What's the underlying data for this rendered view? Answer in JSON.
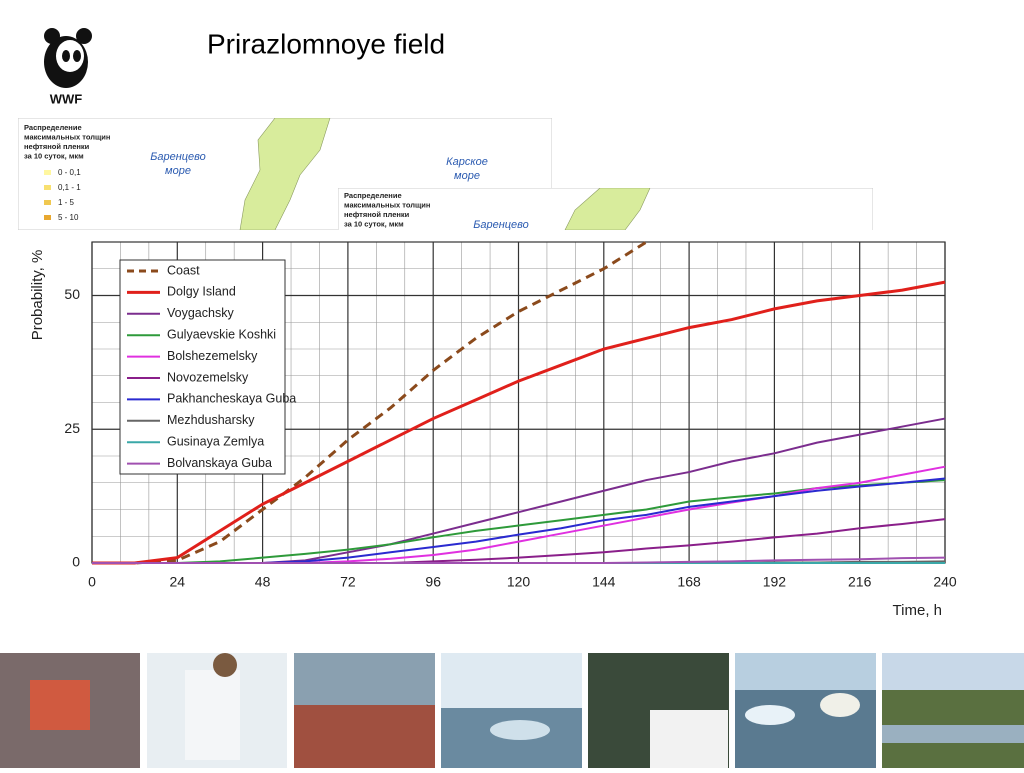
{
  "title": "Prirazlomnoye field",
  "logo_text": "WWF",
  "maps": [
    {
      "title": [
        "Распределение",
        "максимальных толщин",
        "нефтяной пленки",
        "за 10 суток, мкм"
      ],
      "seas": [
        [
          "Баренцево",
          "море"
        ],
        [
          "Карское",
          "море"
        ]
      ],
      "legend": [
        "0 - 0,1",
        "0,1 - 1",
        "1 - 5",
        "5 - 10"
      ]
    },
    {
      "title": [
        "Распределение",
        "максимальных толщин",
        "нефтяной пленки",
        "за 10 суток, мкм"
      ],
      "seas": [
        [
          "Баренцево"
        ]
      ]
    }
  ],
  "chart_data": {
    "type": "line",
    "xlabel": "Time, h",
    "ylabel": "Probability, %",
    "xlim": [
      0,
      240
    ],
    "ylim": [
      0,
      60
    ],
    "xticks": [
      0,
      24,
      48,
      72,
      96,
      120,
      144,
      168,
      192,
      216,
      240
    ],
    "yticks": [
      0,
      25,
      50
    ],
    "grid": true,
    "x_minor_grid": [
      8,
      16,
      32,
      40,
      56,
      64,
      80,
      88,
      104,
      112,
      128,
      136,
      152,
      160,
      176,
      184,
      200,
      208,
      224,
      232
    ],
    "y_minor_grid": [
      5,
      10,
      15,
      20,
      30,
      35,
      40,
      45,
      55
    ],
    "legend": "upper left",
    "x": [
      0,
      12,
      24,
      36,
      48,
      60,
      72,
      84,
      96,
      108,
      120,
      132,
      144,
      156,
      168,
      180,
      192,
      204,
      216,
      228,
      240
    ],
    "series": [
      {
        "name": "Coast",
        "color": "#8b4a1c",
        "dash": true,
        "values": [
          0,
          0,
          0.5,
          4,
          10,
          16,
          23,
          29,
          36,
          42,
          47,
          51,
          55,
          60,
          null,
          null,
          null,
          null,
          null,
          null,
          null
        ]
      },
      {
        "name": "Dolgy Island",
        "color": "#e0201b",
        "values": [
          0,
          0,
          1,
          6,
          11,
          15,
          19,
          23,
          27,
          30.5,
          34,
          37,
          40,
          42,
          44,
          45.5,
          47.5,
          49,
          50,
          51,
          52.5
        ]
      },
      {
        "name": "Voygachsky",
        "color": "#7b2d8e",
        "values": [
          0,
          0,
          0,
          0,
          0,
          0.5,
          2,
          3.5,
          5.5,
          7.5,
          9.5,
          11.5,
          13.5,
          15.5,
          17,
          19,
          20.5,
          22.5,
          24,
          25.5,
          27
        ]
      },
      {
        "name": "Gulyaevskie Koshki",
        "color": "#2e9a3a",
        "values": [
          0,
          0,
          0,
          0.3,
          1,
          1.7,
          2.5,
          3.5,
          4.8,
          6,
          7,
          8,
          9,
          10,
          11.5,
          12.3,
          13,
          14,
          14.5,
          15,
          15.5
        ]
      },
      {
        "name": "Bolshezemelsky",
        "color": "#e030e0",
        "values": [
          0,
          0,
          0,
          0,
          0,
          0,
          0.3,
          0.8,
          1.5,
          2.5,
          4,
          5.5,
          7,
          8.5,
          10,
          11.3,
          12.5,
          14,
          15,
          16.5,
          18
        ]
      },
      {
        "name": "Novozemelsky",
        "color": "#8a1f8a",
        "values": [
          0,
          0,
          0,
          0,
          0,
          0,
          0,
          0,
          0.3,
          0.6,
          1,
          1.5,
          2,
          2.7,
          3.3,
          4,
          4.8,
          5.5,
          6.5,
          7.3,
          8.2
        ]
      },
      {
        "name": "Pakhancheskaya Guba",
        "color": "#2a2ad0",
        "values": [
          0,
          0,
          0,
          0,
          0,
          0.3,
          1,
          2,
          3,
          4,
          5.3,
          6.5,
          8,
          9,
          10.5,
          11.5,
          12.5,
          13.5,
          14.3,
          15,
          15.8
        ]
      },
      {
        "name": "Mezhdusharsky",
        "color": "#666666",
        "values": [
          0,
          0,
          0,
          0,
          0,
          0,
          0,
          0,
          0,
          0,
          0,
          0,
          0,
          0,
          0,
          0,
          0.1,
          0.1,
          0.2,
          0.2,
          0.3
        ]
      },
      {
        "name": "Gusinaya Zemlya",
        "color": "#3aa8a8",
        "values": [
          0,
          0,
          0,
          0,
          0,
          0,
          0,
          0,
          0,
          0,
          0,
          0,
          0,
          0,
          0,
          0,
          0,
          0,
          0,
          0,
          0
        ]
      },
      {
        "name": "Bolvanskaya Guba",
        "color": "#a050b0",
        "values": [
          0,
          0,
          0,
          0,
          0,
          0,
          0,
          0,
          0,
          0,
          0,
          0,
          0,
          0.1,
          0.2,
          0.3,
          0.5,
          0.6,
          0.7,
          0.9,
          1
        ]
      }
    ]
  }
}
